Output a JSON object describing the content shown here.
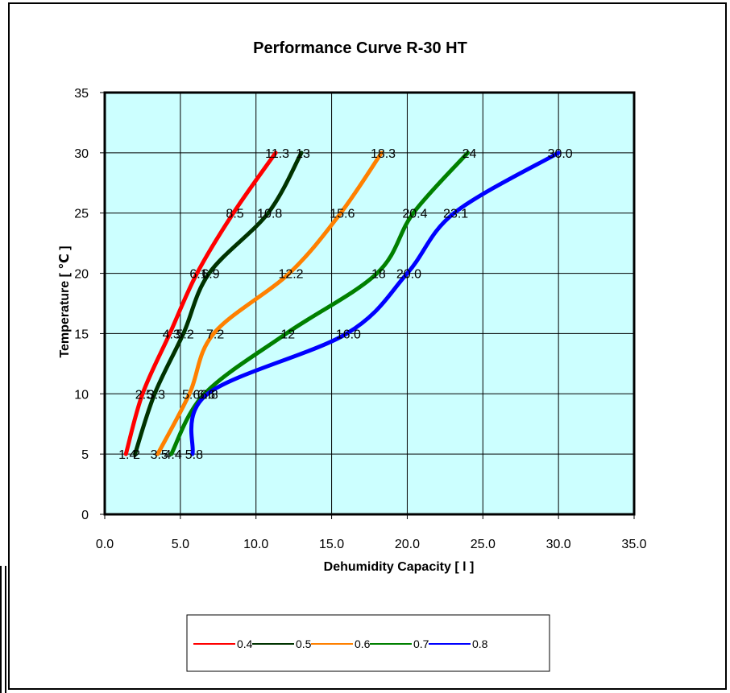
{
  "chart_data": {
    "type": "line",
    "title": "Performance Curve R-30 HT",
    "xlabel": "Dehumidity Capacity [ l ]",
    "ylabel": "Temperature [ ℃ ]",
    "xlim": [
      0,
      35
    ],
    "ylim": [
      0,
      35
    ],
    "x_ticks": [
      "0.0",
      "5.0",
      "10.0",
      "15.0",
      "20.0",
      "25.0",
      "30.0",
      "35.0"
    ],
    "y_ticks": [
      "0",
      "5",
      "10",
      "15",
      "20",
      "25",
      "30",
      "35"
    ],
    "y": [
      5,
      10,
      15,
      20,
      25,
      30
    ],
    "grid": true,
    "plot_background": "#CCFFFF",
    "legend_position": "bottom",
    "series": [
      {
        "name": "0.4",
        "color": "#FF0000",
        "x": [
          1.4,
          2.5,
          4.3,
          6.1,
          8.5,
          11.3
        ],
        "labels": [
          "1.4",
          "2.5",
          "4.3",
          "6.1",
          "8.5",
          "11.3"
        ]
      },
      {
        "name": "0.5",
        "color": "#003300",
        "x": [
          2.0,
          3.3,
          5.2,
          6.9,
          10.8,
          13.0
        ],
        "labels": [
          "2",
          "3.3",
          "5.2",
          "6.9",
          "10.8",
          "13"
        ]
      },
      {
        "name": "0.6",
        "color": "#FF8000",
        "x": [
          3.5,
          5.6,
          7.2,
          12.2,
          15.6,
          18.3
        ],
        "labels": [
          "3.5",
          "5.6",
          "7.2",
          "12.2",
          "15.6",
          "18.3"
        ]
      },
      {
        "name": "0.7",
        "color": "#008000",
        "x": [
          4.4,
          6.6,
          12.0,
          18.0,
          20.4,
          24.0
        ],
        "labels": [
          "4.4",
          "6.6",
          "12",
          "18",
          "20.4",
          "24"
        ]
      },
      {
        "name": "0.8",
        "color": "#0000FF",
        "x": [
          5.8,
          6.8,
          16.0,
          20.0,
          23.1,
          30.0
        ],
        "labels": [
          "5.8",
          "6.8",
          "16.0",
          "20.0",
          "23.1",
          "30.0"
        ]
      }
    ]
  }
}
